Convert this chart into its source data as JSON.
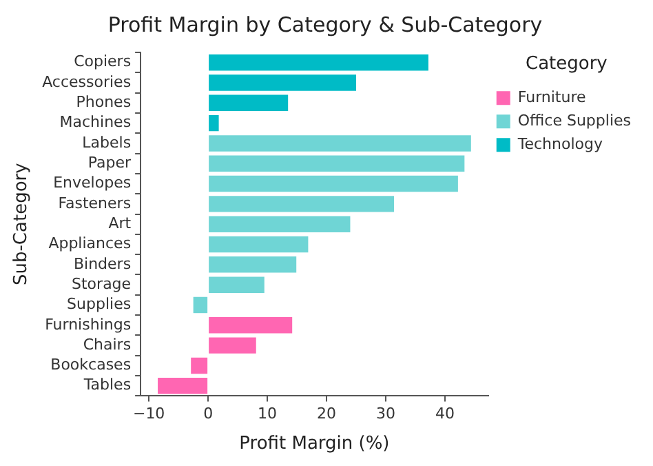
{
  "chart_data": {
    "type": "bar",
    "orientation": "horizontal",
    "title": "Profit Margin by Category & Sub-Category",
    "xlabel": "Profit Margin (%)",
    "ylabel": "Sub-Category",
    "legend_title": "Category",
    "legend": "top right",
    "grid": false,
    "categories": [
      "Copiers",
      "Accessories",
      "Phones",
      "Machines",
      "Labels",
      "Paper",
      "Envelopes",
      "Fasteners",
      "Art",
      "Appliances",
      "Binders",
      "Storage",
      "Supplies",
      "Furnishings",
      "Chairs",
      "Bookcases",
      "Tables"
    ],
    "series": [
      {
        "name": "Furniture",
        "color": "#ff66b2",
        "values": [
          null,
          null,
          null,
          null,
          null,
          null,
          null,
          null,
          null,
          null,
          null,
          null,
          null,
          14.2,
          8.1,
          -2.9,
          -8.5
        ]
      },
      {
        "name": "Office Supplies",
        "color": "#6fd5d5",
        "values": [
          null,
          null,
          null,
          null,
          44.4,
          43.3,
          42.2,
          31.4,
          24.0,
          16.9,
          14.9,
          9.5,
          -2.5,
          null,
          null,
          null,
          null
        ]
      },
      {
        "name": "Technology",
        "color": "#00bbc6",
        "values": [
          37.2,
          25.0,
          13.5,
          1.8,
          null,
          null,
          null,
          null,
          null,
          null,
          null,
          null,
          null,
          null,
          null,
          null,
          null
        ]
      }
    ],
    "xlim": [
      -11.4,
      47.3
    ],
    "xticks": [
      -10,
      0,
      10,
      20,
      30,
      40
    ]
  }
}
